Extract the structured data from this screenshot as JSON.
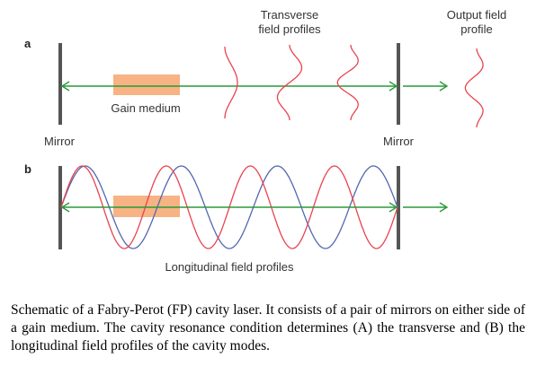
{
  "panel_a": {
    "letter": "a",
    "transverse_label_line1": "Transverse",
    "transverse_label_line2": "field profiles",
    "output_label_line1": "Output field",
    "output_label_line2": "profile",
    "gain_label": "Gain medium",
    "left_mirror_label": "Mirror",
    "right_mirror_label": "Mirror"
  },
  "panel_b": {
    "letter": "b",
    "longitudinal_label": "Longitudinal field profiles"
  },
  "colors": {
    "mirror": "#555555",
    "beam_arrow": "#2a9a3a",
    "gain_medium": "#f7b383",
    "wave_red": "#e8434f",
    "wave_blue": "#5566b0"
  },
  "caption": "Schematic of a Fabry-Perot (FP) cavity laser. It consists of a pair of mirrors on either side of a gain medium. The cavity resonance condition determines (A) the transverse and (B) the longitudinal field profiles of the cavity modes."
}
